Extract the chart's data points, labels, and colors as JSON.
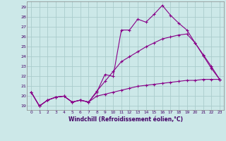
{
  "xlabel": "Windchill (Refroidissement éolien,°C)",
  "bg_color": "#cce8e8",
  "grid_color": "#aacccc",
  "line_color": "#880088",
  "x_ticks": [
    0,
    1,
    2,
    3,
    4,
    5,
    6,
    7,
    8,
    9,
    10,
    11,
    12,
    13,
    14,
    15,
    16,
    17,
    18,
    19,
    20,
    21,
    22,
    23
  ],
  "y_ticks": [
    19,
    20,
    21,
    22,
    23,
    24,
    25,
    26,
    27,
    28,
    29
  ],
  "ylim": [
    18.6,
    29.6
  ],
  "xlim": [
    -0.5,
    23.5
  ],
  "line1": [
    20.4,
    19.0,
    19.6,
    19.9,
    20.0,
    19.4,
    19.6,
    19.4,
    20.4,
    22.2,
    22.0,
    26.7,
    26.7,
    27.8,
    27.5,
    28.3,
    29.2,
    28.2,
    27.4,
    26.7,
    25.4,
    24.1,
    22.8,
    21.7
  ],
  "line2": [
    20.4,
    19.0,
    19.6,
    19.9,
    20.0,
    19.4,
    19.6,
    19.4,
    20.5,
    21.5,
    22.5,
    23.5,
    24.0,
    24.5,
    25.0,
    25.4,
    25.8,
    26.0,
    26.2,
    26.3,
    25.4,
    24.2,
    23.0,
    21.7
  ],
  "line3": [
    20.4,
    19.0,
    19.6,
    19.9,
    20.0,
    19.4,
    19.6,
    19.4,
    20.0,
    20.2,
    20.4,
    20.6,
    20.8,
    21.0,
    21.1,
    21.2,
    21.3,
    21.4,
    21.5,
    21.6,
    21.6,
    21.7,
    21.7,
    21.7
  ]
}
